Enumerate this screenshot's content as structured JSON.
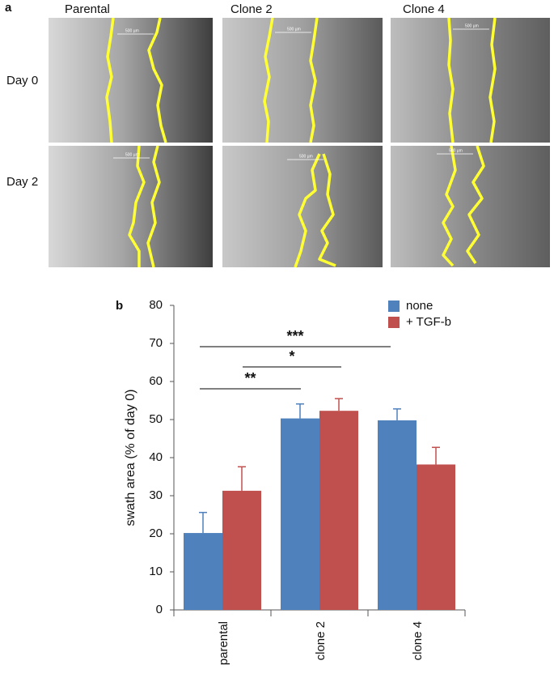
{
  "panel_a": {
    "panel_letter": "a",
    "columns": [
      "Parental",
      "Clone 2",
      "Clone 4"
    ],
    "rows": [
      "Day 0",
      "Day 2"
    ],
    "scale_label": "500 µm"
  },
  "chart_data": {
    "type": "bar",
    "panel_letter": "b",
    "y_label": "swath area (% of day 0)",
    "categories": [
      "parental",
      "clone 2",
      "clone 4"
    ],
    "series": [
      {
        "name": "none",
        "color": "#4f81bd",
        "values": [
          20.2,
          50.3,
          49.8
        ],
        "errors": [
          5.4,
          3.8,
          3.0
        ]
      },
      {
        "name": "+ TGF-b",
        "color": "#c0504d",
        "values": [
          31.3,
          52.3,
          38.2
        ],
        "errors": [
          6.3,
          3.2,
          4.5
        ]
      }
    ],
    "ylim": [
      0,
      80
    ],
    "yticks": [
      0,
      10,
      20,
      30,
      40,
      50,
      60,
      70,
      80
    ],
    "significance": [
      "***",
      "*",
      "**"
    ]
  }
}
